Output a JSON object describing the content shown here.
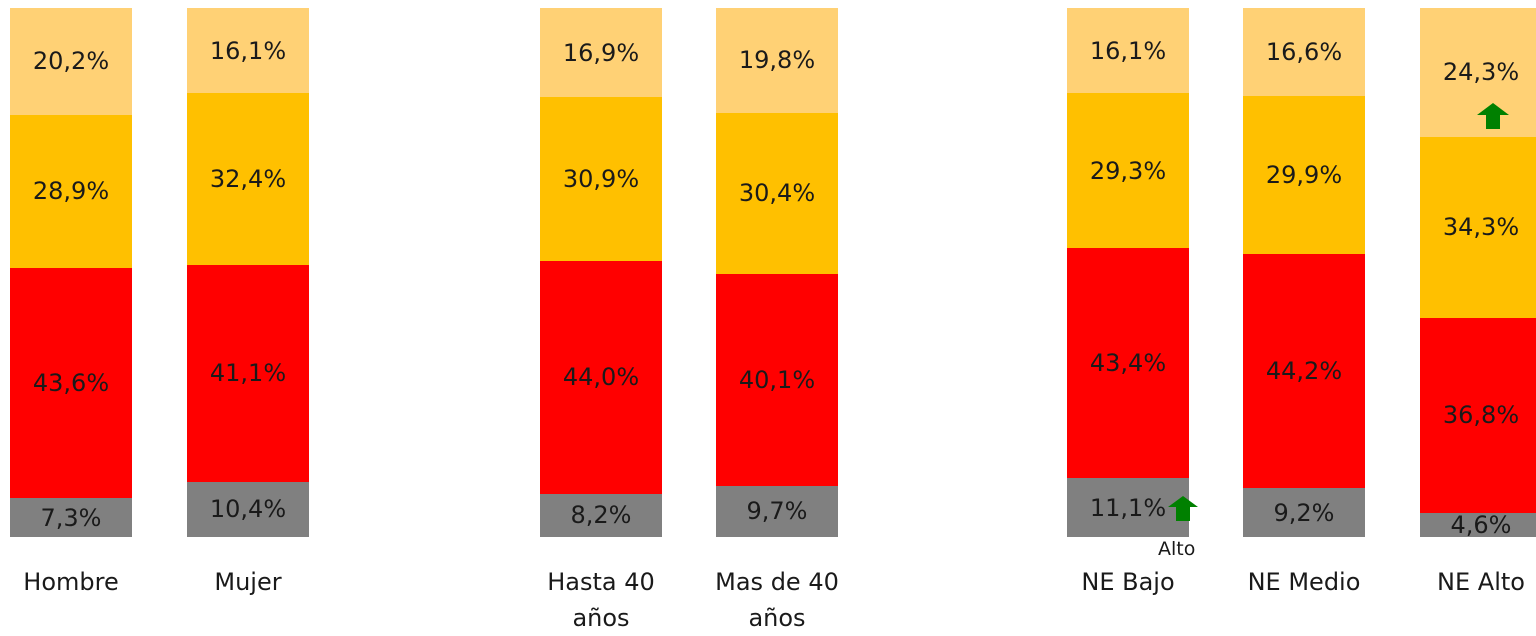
{
  "chart_data": {
    "type": "stacked_bar",
    "categories": [
      "Hombre",
      "Mujer",
      "Hasta 40 años",
      "Mas de 40 años",
      "NE Bajo",
      "NE Medio",
      "NE Alto"
    ],
    "series": [
      {
        "color": "#808080",
        "values": [
          7.3,
          10.4,
          8.2,
          9.7,
          11.1,
          9.2,
          4.6
        ],
        "value_labels": [
          "7,3%",
          "10,4%",
          "8,2%",
          "9,7%",
          "11,1%",
          "9,2%",
          "4,6%"
        ]
      },
      {
        "color": "#ff0000",
        "values": [
          43.6,
          41.1,
          44.0,
          40.1,
          43.4,
          44.2,
          36.8
        ],
        "value_labels": [
          "43,6%",
          "41,1%",
          "44,0%",
          "40,1%",
          "43,4%",
          "44,2%",
          "36,8%"
        ]
      },
      {
        "color": "#ffc000",
        "values": [
          28.9,
          32.4,
          30.9,
          30.4,
          29.3,
          29.9,
          34.3
        ],
        "value_labels": [
          "28,9%",
          "32,4%",
          "30,9%",
          "30,4%",
          "29,3%",
          "29,9%",
          "34,3%"
        ]
      },
      {
        "color": "#ffd175",
        "values": [
          20.2,
          16.1,
          16.9,
          19.8,
          16.1,
          16.6,
          24.3
        ],
        "value_labels": [
          "20,2%",
          "16,1%",
          "16,9%",
          "19,8%",
          "16,1%",
          "16,6%",
          "24,3%"
        ]
      }
    ],
    "annotations": [
      "Alto"
    ]
  }
}
